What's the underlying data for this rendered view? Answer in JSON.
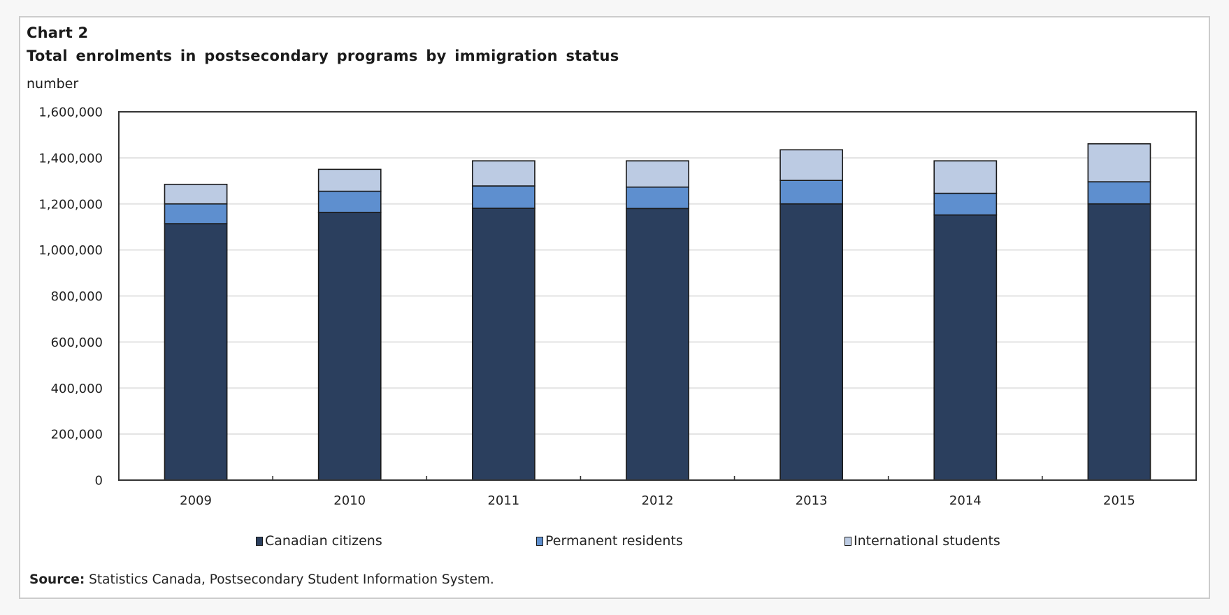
{
  "card": {
    "chart_number": "Chart 2",
    "title": "Total enrolments in postsecondary programs by immigration status",
    "unit": "number",
    "source_label": "Source:",
    "source_text": " Statistics Canada, Postsecondary Student Information System."
  },
  "colors": {
    "canadian_citizens": "#2b3f5e",
    "permanent_residents": "#5e8fcf",
    "international_students": "#bccbe3",
    "bar_outline": "#1a1a1a",
    "gridline": "#e3e3e3",
    "frame": "#333333"
  },
  "chart_data": {
    "type": "bar",
    "stacked": true,
    "title": "Total enrolments in postsecondary programs by immigration status",
    "subtitle": "Chart 2",
    "xlabel": "",
    "ylabel": "number",
    "categories": [
      "2009",
      "2010",
      "2011",
      "2012",
      "2013",
      "2014",
      "2015"
    ],
    "series": [
      {
        "name": "Canadian citizens",
        "color": "#2b3f5e",
        "values": [
          1114000,
          1163000,
          1181000,
          1180000,
          1200000,
          1152000,
          1200000
        ]
      },
      {
        "name": "Permanent residents",
        "color": "#5e8fcf",
        "values": [
          86000,
          92000,
          97000,
          93000,
          102000,
          94000,
          96000
        ]
      },
      {
        "name": "International students",
        "color": "#bccbe3",
        "values": [
          85000,
          95000,
          109000,
          114000,
          133000,
          141000,
          165000
        ]
      }
    ],
    "ylim": [
      0,
      1600000
    ],
    "yticks": [
      0,
      200000,
      400000,
      600000,
      800000,
      1000000,
      1200000,
      1400000,
      1600000
    ],
    "ytick_labels": [
      "0",
      "200,000",
      "400,000",
      "600,000",
      "800,000",
      "1,000,000",
      "1,200,000",
      "1,400,000",
      "1,600,000"
    ],
    "grid": true,
    "legend_position": "bottom"
  }
}
